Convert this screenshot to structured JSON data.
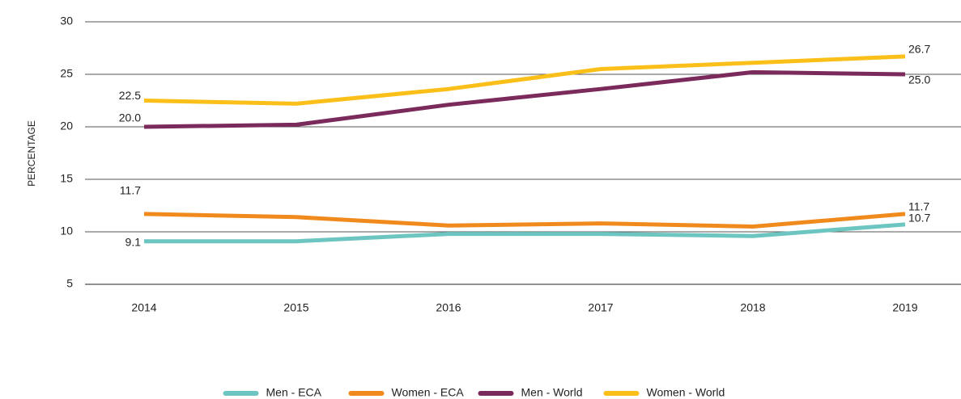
{
  "chart_data": {
    "type": "line",
    "y_label": "PERCENTAGE",
    "categories": [
      "2014",
      "2015",
      "2016",
      "2017",
      "2018",
      "2019"
    ],
    "series": [
      {
        "name": "Men - ECA",
        "color": "#6cc5c0",
        "values": [
          9.1,
          9.1,
          9.8,
          9.8,
          9.6,
          10.7
        ],
        "value_labels": [
          "9.1",
          null,
          null,
          null,
          null,
          "10.7"
        ]
      },
      {
        "name": "Women - ECA",
        "color": "#f08a1d",
        "values": [
          11.7,
          11.4,
          10.6,
          10.8,
          10.5,
          11.7
        ],
        "value_labels": [
          "11.7",
          null,
          null,
          null,
          null,
          "11.7"
        ]
      },
      {
        "name": "Men - World",
        "color": "#7b2a5c",
        "values": [
          20.0,
          20.2,
          22.1,
          23.6,
          25.2,
          25.0
        ],
        "value_labels": [
          "20.0",
          null,
          null,
          null,
          null,
          "25.0"
        ]
      },
      {
        "name": "Women - World",
        "color": "#fbbf1a",
        "values": [
          22.5,
          22.2,
          23.6,
          25.5,
          26.1,
          26.7
        ],
        "value_labels": [
          "22.5",
          null,
          null,
          null,
          null,
          "26.7"
        ]
      }
    ],
    "ylim": [
      5,
      30
    ],
    "yticks": [
      5,
      10,
      15,
      20,
      25,
      30
    ],
    "grid": true,
    "legend": "bottom"
  }
}
